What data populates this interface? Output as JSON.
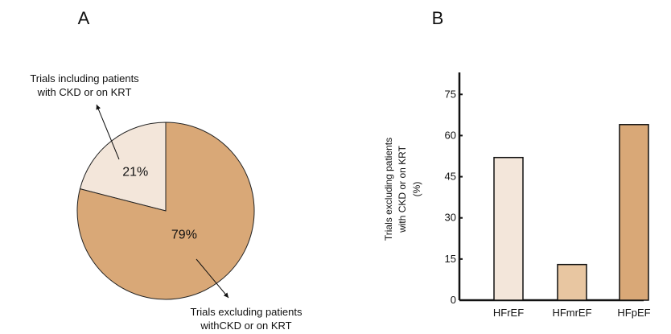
{
  "chart_data": [
    {
      "type": "pie",
      "panel_label": "A",
      "slices": [
        {
          "label": "Trials including patients with CKD or on KRT",
          "value": 21,
          "value_label": "21%",
          "color": "#f3e6da"
        },
        {
          "label": "Trials excluding patients withCKD or on KRT",
          "value": 79,
          "value_label": "79%",
          "color": "#d9a877"
        }
      ],
      "annotations": {
        "including_line1": "Trials including patients",
        "including_line2": "with CKD or on KRT",
        "excluding_line1": "Trials excluding patients",
        "excluding_line2": "withCKD or on KRT"
      }
    },
    {
      "type": "bar",
      "panel_label": "B",
      "categories": [
        "HFrEF",
        "HFmrEF",
        "HFpEF"
      ],
      "values": [
        52,
        13,
        64
      ],
      "colors": [
        "#f3e6da",
        "#e8c6a1",
        "#d9a877"
      ],
      "ylabel_lines": [
        "Trials excluding patients",
        "with CKD or on KRT",
        "(%)"
      ],
      "yticks": [
        0,
        15,
        30,
        45,
        60,
        75
      ],
      "ylim": [
        0,
        83
      ],
      "grid": false
    }
  ]
}
